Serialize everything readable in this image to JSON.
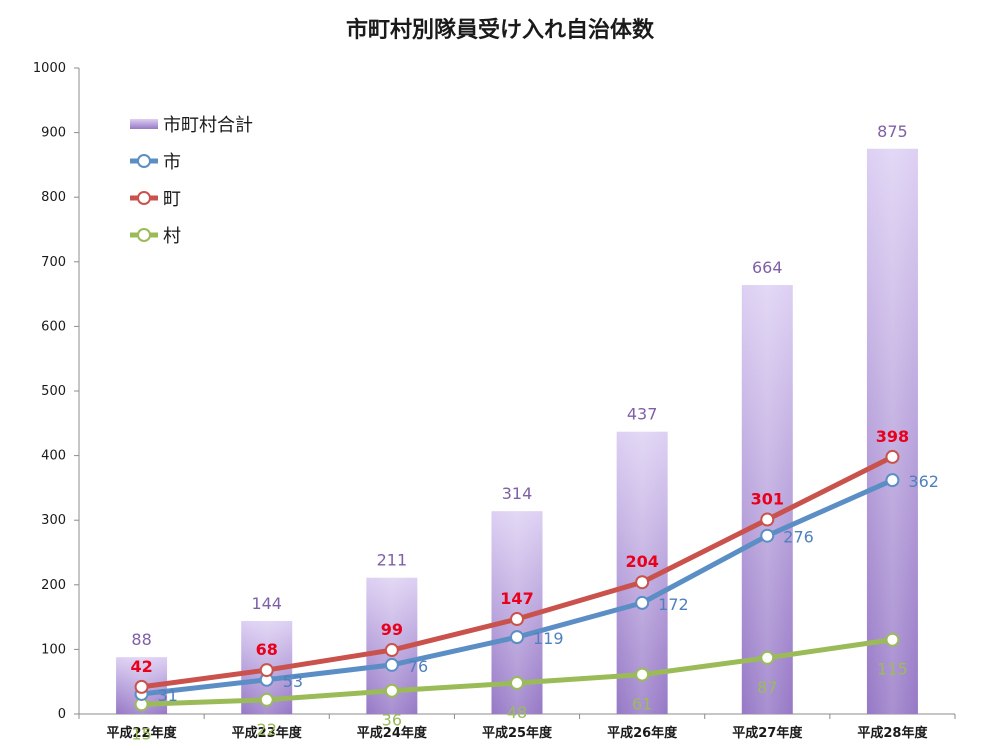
{
  "chart_data": {
    "type": "bar+line",
    "title": "市町村別隊員受け入れ自治体数",
    "categories": [
      "平成22年度",
      "平成23年度",
      "平成24年度",
      "平成25年度",
      "平成26年度",
      "平成27年度",
      "平成28年度"
    ],
    "ylim": [
      0,
      1000
    ],
    "yticks": [
      0,
      100,
      200,
      300,
      400,
      500,
      600,
      700,
      800,
      900,
      1000
    ],
    "grid": false,
    "legend_position": "top-left",
    "bar_series": {
      "name": "市町村合計",
      "values": [
        88,
        144,
        211,
        314,
        437,
        664,
        875
      ],
      "color": "#8e6fbf",
      "label_color": "#7f60a8"
    },
    "line_series": [
      {
        "name": "市",
        "values": [
          31,
          53,
          76,
          119,
          172,
          276,
          362
        ],
        "color": "#5b8ec5",
        "label_color": "#4f81bd"
      },
      {
        "name": "町",
        "values": [
          42,
          68,
          99,
          147,
          204,
          301,
          398
        ],
        "color": "#c9524d",
        "label_color": "#e8001c"
      },
      {
        "name": "村",
        "values": [
          15,
          22,
          36,
          48,
          61,
          87,
          115
        ],
        "color": "#9bbb59",
        "label_color": "#9bbb59"
      }
    ]
  }
}
